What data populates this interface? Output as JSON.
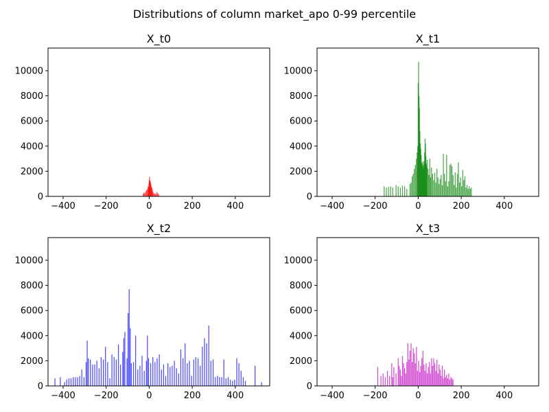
{
  "title": "Distributions of column market_apo 0-99 percentile",
  "chart_data": [
    {
      "type": "histogram",
      "title": "X_t0",
      "color": "#ff0000",
      "opacity": 0.7,
      "xlim": [
        -470,
        560
      ],
      "ylim": [
        0,
        11800
      ],
      "xticks": [
        -400,
        -200,
        0,
        200,
        400
      ],
      "yticks": [
        0,
        2000,
        4000,
        6000,
        8000,
        10000
      ],
      "x_tick_labels": [
        "−400",
        "−200",
        "0",
        "200",
        "400"
      ],
      "y_tick_labels": [
        "0",
        "2000",
        "4000",
        "6000",
        "8000",
        "10000"
      ],
      "bins": [
        [
          -30,
          200
        ],
        [
          -26,
          300
        ],
        [
          -22,
          250
        ],
        [
          -18,
          400
        ],
        [
          -14,
          500
        ],
        [
          -10,
          600
        ],
        [
          -7,
          800
        ],
        [
          -5,
          700
        ],
        [
          -3,
          1100
        ],
        [
          -1,
          1300
        ],
        [
          0,
          1550
        ],
        [
          2,
          1250
        ],
        [
          4,
          1150
        ],
        [
          6,
          1000
        ],
        [
          8,
          800
        ],
        [
          10,
          700
        ],
        [
          12,
          600
        ],
        [
          14,
          400
        ],
        [
          18,
          300
        ],
        [
          22,
          200
        ],
        [
          26,
          250
        ],
        [
          30,
          150
        ],
        [
          34,
          350
        ],
        [
          38,
          250
        ],
        [
          42,
          150
        ]
      ]
    },
    {
      "type": "histogram",
      "title": "X_t1",
      "color": "#008000",
      "opacity": 0.7,
      "xlim": [
        -470,
        560
      ],
      "ylim": [
        0,
        11800
      ],
      "xticks": [
        -400,
        -200,
        0,
        200,
        400
      ],
      "yticks": [
        0,
        2000,
        4000,
        6000,
        8000,
        10000
      ],
      "x_tick_labels": [
        "−400",
        "−200",
        "0",
        "200",
        "400"
      ],
      "y_tick_labels": [
        "0",
        "2000",
        "4000",
        "6000",
        "8000",
        "10000"
      ],
      "bins": [
        [
          -160,
          800
        ],
        [
          -150,
          700
        ],
        [
          -140,
          750
        ],
        [
          -130,
          800
        ],
        [
          -120,
          700
        ],
        [
          -105,
          900
        ],
        [
          -95,
          800
        ],
        [
          -85,
          700
        ],
        [
          -75,
          850
        ],
        [
          -65,
          800
        ],
        [
          -55,
          600
        ],
        [
          -40,
          1000
        ],
        [
          -35,
          1100
        ],
        [
          -30,
          1600
        ],
        [
          -25,
          1800
        ],
        [
          -20,
          2200
        ],
        [
          -15,
          2500
        ],
        [
          -10,
          3000
        ],
        [
          -7,
          3500
        ],
        [
          -4,
          4000
        ],
        [
          -2,
          9000
        ],
        [
          0,
          10700
        ],
        [
          2,
          8000
        ],
        [
          4,
          7000
        ],
        [
          6,
          5200
        ],
        [
          8,
          4200
        ],
        [
          10,
          3800
        ],
        [
          12,
          3300
        ],
        [
          14,
          2700
        ],
        [
          16,
          2600
        ],
        [
          18,
          2400
        ],
        [
          20,
          2800
        ],
        [
          22,
          2200
        ],
        [
          24,
          2500
        ],
        [
          26,
          2800
        ],
        [
          28,
          3500
        ],
        [
          30,
          4600
        ],
        [
          32,
          4200
        ],
        [
          34,
          3200
        ],
        [
          36,
          2600
        ],
        [
          38,
          2300
        ],
        [
          40,
          2900
        ],
        [
          44,
          2200
        ],
        [
          48,
          1700
        ],
        [
          52,
          3000
        ],
        [
          56,
          1500
        ],
        [
          60,
          2300
        ],
        [
          65,
          1800
        ],
        [
          70,
          1300
        ],
        [
          75,
          1900
        ],
        [
          80,
          1100
        ],
        [
          85,
          2200
        ],
        [
          90,
          1500
        ],
        [
          95,
          1000
        ],
        [
          100,
          1400
        ],
        [
          105,
          1700
        ],
        [
          110,
          900
        ],
        [
          115,
          3400
        ],
        [
          120,
          1800
        ],
        [
          125,
          1200
        ],
        [
          130,
          3300
        ],
        [
          135,
          800
        ],
        [
          140,
          1200
        ],
        [
          145,
          2500
        ],
        [
          150,
          2600
        ],
        [
          155,
          2400
        ],
        [
          160,
          1700
        ],
        [
          165,
          900
        ],
        [
          170,
          1900
        ],
        [
          175,
          700
        ],
        [
          180,
          1800
        ],
        [
          185,
          2700
        ],
        [
          190,
          1100
        ],
        [
          195,
          1500
        ],
        [
          200,
          800
        ],
        [
          205,
          2100
        ],
        [
          210,
          1300
        ],
        [
          215,
          1600
        ],
        [
          220,
          700
        ],
        [
          225,
          900
        ],
        [
          230,
          600
        ],
        [
          235,
          800
        ],
        [
          240,
          600
        ],
        [
          245,
          700
        ]
      ]
    },
    {
      "type": "histogram",
      "title": "X_t2",
      "color": "#0000ff",
      "opacity": 0.7,
      "xlim": [
        -470,
        560
      ],
      "ylim": [
        0,
        11800
      ],
      "xticks": [
        -400,
        -200,
        0,
        200,
        400
      ],
      "yticks": [
        0,
        2000,
        4000,
        6000,
        8000,
        10000
      ],
      "x_tick_labels": [
        "−400",
        "−200",
        "0",
        "200",
        "400"
      ],
      "y_tick_labels": [
        "0",
        "2000",
        "4000",
        "6000",
        "8000",
        "10000"
      ],
      "bins": [
        [
          -440,
          600
        ],
        [
          -415,
          700
        ],
        [
          -395,
          300
        ],
        [
          -385,
          500
        ],
        [
          -375,
          600
        ],
        [
          -365,
          600
        ],
        [
          -355,
          700
        ],
        [
          -345,
          700
        ],
        [
          -335,
          700
        ],
        [
          -325,
          800
        ],
        [
          -315,
          1300
        ],
        [
          -305,
          700
        ],
        [
          -295,
          1900
        ],
        [
          -290,
          3600
        ],
        [
          -285,
          2200
        ],
        [
          -275,
          2100
        ],
        [
          -265,
          1700
        ],
        [
          -255,
          1700
        ],
        [
          -245,
          2000
        ],
        [
          -235,
          1400
        ],
        [
          -225,
          2300
        ],
        [
          -215,
          2100
        ],
        [
          -205,
          3100
        ],
        [
          -195,
          1900
        ],
        [
          -185,
          600
        ],
        [
          -175,
          2500
        ],
        [
          -165,
          2300
        ],
        [
          -155,
          2100
        ],
        [
          -145,
          3300
        ],
        [
          -135,
          1700
        ],
        [
          -125,
          2700
        ],
        [
          -120,
          3800
        ],
        [
          -115,
          4300
        ],
        [
          -105,
          2200
        ],
        [
          -100,
          5800
        ],
        [
          -95,
          7700
        ],
        [
          -90,
          4600
        ],
        [
          -85,
          1800
        ],
        [
          -75,
          1900
        ],
        [
          -65,
          4000
        ],
        [
          -55,
          1300
        ],
        [
          -45,
          1600
        ],
        [
          -35,
          2400
        ],
        [
          -25,
          1200
        ],
        [
          -15,
          2000
        ],
        [
          -10,
          4000
        ],
        [
          -5,
          2200
        ],
        [
          5,
          1800
        ],
        [
          15,
          2300
        ],
        [
          25,
          1900
        ],
        [
          35,
          2200
        ],
        [
          45,
          2500
        ],
        [
          55,
          1300
        ],
        [
          65,
          1700
        ],
        [
          75,
          800
        ],
        [
          85,
          1800
        ],
        [
          95,
          1500
        ],
        [
          105,
          1600
        ],
        [
          115,
          2000
        ],
        [
          125,
          1400
        ],
        [
          135,
          1000
        ],
        [
          145,
          2900
        ],
        [
          155,
          2200
        ],
        [
          165,
          3400
        ],
        [
          175,
          1800
        ],
        [
          185,
          2000
        ],
        [
          195,
          800
        ],
        [
          205,
          2100
        ],
        [
          215,
          2300
        ],
        [
          225,
          2200
        ],
        [
          235,
          1600
        ],
        [
          245,
          3100
        ],
        [
          255,
          3800
        ],
        [
          265,
          3400
        ],
        [
          275,
          4800
        ],
        [
          285,
          2000
        ],
        [
          295,
          2100
        ],
        [
          305,
          700
        ],
        [
          315,
          800
        ],
        [
          325,
          700
        ],
        [
          335,
          700
        ],
        [
          345,
          2100
        ],
        [
          355,
          600
        ],
        [
          365,
          700
        ],
        [
          375,
          500
        ],
        [
          385,
          400
        ],
        [
          395,
          500
        ],
        [
          405,
          2200
        ],
        [
          415,
          1800
        ],
        [
          425,
          1200
        ],
        [
          435,
          700
        ],
        [
          445,
          400
        ],
        [
          490,
          1600
        ],
        [
          520,
          300
        ]
      ]
    },
    {
      "type": "histogram",
      "title": "X_t3",
      "color": "#c000c0",
      "opacity": 0.7,
      "xlim": [
        -470,
        560
      ],
      "ylim": [
        0,
        11800
      ],
      "xticks": [
        -400,
        -200,
        0,
        200,
        400
      ],
      "yticks": [
        0,
        2000,
        4000,
        6000,
        8000,
        10000
      ],
      "x_tick_labels": [
        "−400",
        "−200",
        "0",
        "200",
        "400"
      ],
      "y_tick_labels": [
        "0",
        "2000",
        "4000",
        "6000",
        "8000",
        "10000"
      ],
      "bins": [
        [
          -190,
          1500
        ],
        [
          -175,
          800
        ],
        [
          -165,
          1000
        ],
        [
          -155,
          700
        ],
        [
          -145,
          1200
        ],
        [
          -135,
          800
        ],
        [
          -125,
          1800
        ],
        [
          -120,
          700
        ],
        [
          -115,
          1500
        ],
        [
          -105,
          1000
        ],
        [
          -95,
          2200
        ],
        [
          -90,
          1600
        ],
        [
          -85,
          1300
        ],
        [
          -80,
          800
        ],
        [
          -75,
          2400
        ],
        [
          -70,
          1800
        ],
        [
          -65,
          1400
        ],
        [
          -60,
          1000
        ],
        [
          -55,
          1900
        ],
        [
          -50,
          3400
        ],
        [
          -45,
          2100
        ],
        [
          -40,
          2800
        ],
        [
          -35,
          3400
        ],
        [
          -30,
          1900
        ],
        [
          -25,
          3000
        ],
        [
          -20,
          2600
        ],
        [
          -15,
          1800
        ],
        [
          -10,
          3100
        ],
        [
          -5,
          1200
        ],
        [
          0,
          2000
        ],
        [
          5,
          1100
        ],
        [
          10,
          1600
        ],
        [
          15,
          2200
        ],
        [
          20,
          2800
        ],
        [
          25,
          1700
        ],
        [
          30,
          1200
        ],
        [
          35,
          1800
        ],
        [
          40,
          1000
        ],
        [
          45,
          1500
        ],
        [
          50,
          1900
        ],
        [
          55,
          1000
        ],
        [
          60,
          2200
        ],
        [
          65,
          1600
        ],
        [
          70,
          2200
        ],
        [
          75,
          1800
        ],
        [
          80,
          1200
        ],
        [
          85,
          2100
        ],
        [
          90,
          1000
        ],
        [
          95,
          1700
        ],
        [
          100,
          1300
        ],
        [
          105,
          800
        ],
        [
          110,
          1600
        ],
        [
          115,
          600
        ],
        [
          120,
          1300
        ],
        [
          125,
          700
        ],
        [
          130,
          900
        ],
        [
          135,
          600
        ],
        [
          140,
          1000
        ],
        [
          145,
          500
        ],
        [
          150,
          700
        ],
        [
          155,
          600
        ],
        [
          160,
          500
        ]
      ]
    }
  ]
}
